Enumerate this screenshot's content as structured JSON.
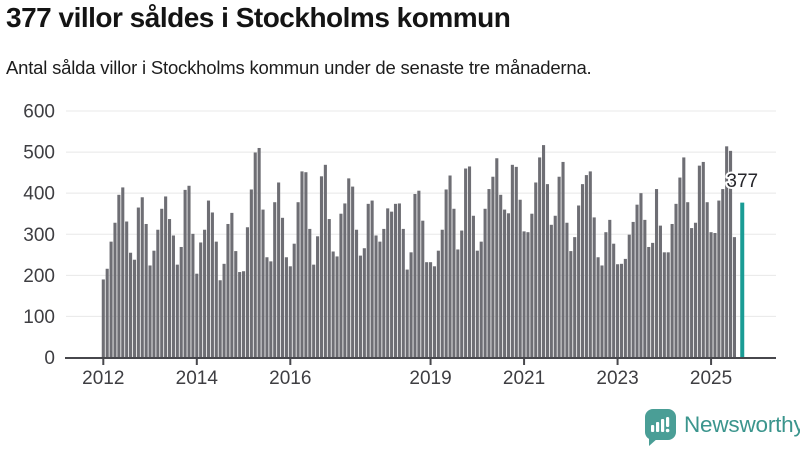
{
  "header": {
    "title": "377 villor såldes i Stockholms kommun",
    "subtitle": "Antal sålda villor i Stockholms kommun under de senaste tre månaderna."
  },
  "chart_data": {
    "type": "bar",
    "title": "377 villor såldes i Stockholms kommun",
    "xlabel": "",
    "ylabel": "",
    "ylim": [
      0,
      600
    ],
    "grid": true,
    "bar_color": "#6e6e74",
    "yticks": [
      0,
      100,
      200,
      300,
      400,
      500,
      600
    ],
    "xticks": [
      {
        "label": "2012",
        "month_index": 0
      },
      {
        "label": "2014",
        "month_index": 24
      },
      {
        "label": "2016",
        "month_index": 48
      },
      {
        "label": "2019",
        "month_index": 84
      },
      {
        "label": "2021",
        "month_index": 108
      },
      {
        "label": "2023",
        "month_index": 132
      },
      {
        "label": "2025",
        "month_index": 156
      }
    ],
    "series_by_year": [
      {
        "year": 2012,
        "values": [
          190,
          216,
          282,
          328,
          396,
          414,
          331,
          255,
          238,
          365,
          390,
          325
        ]
      },
      {
        "year": 2013,
        "values": [
          224,
          260,
          311,
          362,
          392,
          337,
          297,
          226,
          269,
          408,
          418,
          301
        ]
      },
      {
        "year": 2014,
        "values": [
          204,
          280,
          311,
          382,
          353,
          282,
          188,
          228,
          325,
          352,
          259,
          208
        ]
      },
      {
        "year": 2015,
        "values": [
          210,
          317,
          409,
          499,
          510,
          360,
          244,
          234,
          378,
          426,
          340,
          244
        ]
      },
      {
        "year": 2016,
        "values": [
          222,
          277,
          378,
          453,
          451,
          313,
          226,
          295,
          441,
          469,
          337,
          258
        ]
      },
      {
        "year": 2017,
        "values": [
          246,
          350,
          375,
          436,
          416,
          311,
          248,
          266,
          374,
          382,
          297,
          282
        ]
      },
      {
        "year": 2018,
        "values": [
          313,
          363,
          355,
          374,
          375,
          313,
          214,
          256,
          398,
          406,
          333,
          232
        ]
      },
      {
        "year": 2019,
        "values": [
          232,
          222,
          260,
          311,
          409,
          443,
          362,
          263,
          309,
          460,
          465,
          345
        ]
      },
      {
        "year": 2020,
        "values": [
          260,
          282,
          362,
          410,
          440,
          485,
          396,
          360,
          351,
          469,
          464,
          384
        ]
      },
      {
        "year": 2021,
        "values": [
          307,
          305,
          350,
          426,
          487,
          517,
          422,
          323,
          345,
          440,
          476,
          328
        ]
      },
      {
        "year": 2022,
        "values": [
          259,
          293,
          370,
          422,
          444,
          453,
          341,
          244,
          224,
          305,
          335,
          277
        ]
      },
      {
        "year": 2023,
        "values": [
          227,
          228,
          240,
          299,
          330,
          372,
          400,
          335,
          269,
          279,
          410,
          321
        ]
      },
      {
        "year": 2024,
        "values": [
          256,
          256,
          325,
          374,
          438,
          487,
          378,
          315,
          328,
          467,
          476,
          378
        ]
      },
      {
        "year": 2025,
        "values": [
          305,
          303,
          382,
          410,
          514,
          503,
          293
        ]
      }
    ],
    "highlight_bar": {
      "label": "377",
      "value": 377,
      "color": "#1a9c95",
      "gap_slots": 1
    },
    "legend": null
  },
  "footer": {
    "brand": "Newsworthy",
    "logo_icon": "bar-chart-speech-bubble-icon",
    "brand_color": "#3b958d",
    "icon_bg_color": "#4a9e96"
  }
}
